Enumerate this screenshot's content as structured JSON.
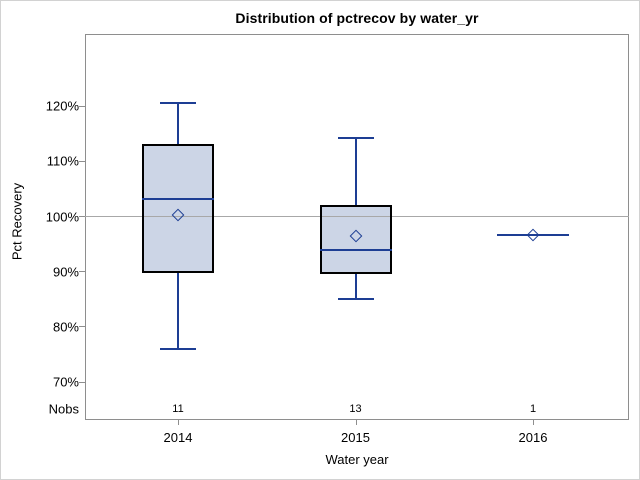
{
  "chart_data": {
    "type": "boxplot",
    "title": "Distribution of pctrecov by water_yr",
    "xlabel": "Water year",
    "ylabel": "Pct Recovery",
    "nobs_label": "Nobs",
    "categories": [
      "2014",
      "2015",
      "2016"
    ],
    "nobs": [
      "11",
      "13",
      "1"
    ],
    "y_ticks": [
      {
        "value": 120,
        "label": "120%"
      },
      {
        "value": 110,
        "label": "110%"
      },
      {
        "value": 100,
        "label": "100%"
      },
      {
        "value": 90,
        "label": "90%"
      },
      {
        "value": 80,
        "label": "80%"
      },
      {
        "value": 70,
        "label": "70%"
      }
    ],
    "reference_line_value": 100,
    "grid": false,
    "legend": "none",
    "ylim": [
      63,
      133
    ],
    "boxes": [
      {
        "category": "2014",
        "n": 11,
        "whisker_low": 76.0,
        "q1": 89.8,
        "median": 103.2,
        "q3": 113.2,
        "whisker_high": 120.5,
        "mean": 100.3
      },
      {
        "category": "2015",
        "n": 13,
        "whisker_low": 85.1,
        "q1": 89.6,
        "median": 94.0,
        "q3": 102.1,
        "whisker_high": 114.2,
        "mean": 96.4
      },
      {
        "category": "2016",
        "n": 1,
        "single_value": 96.7,
        "mean": 96.7
      }
    ],
    "colors": {
      "box_fill": "#ccd5e6",
      "box_border": "#000000",
      "line": "#1d3e94",
      "reference": "#a8a8a8",
      "axis": "#8e8e8e"
    }
  }
}
